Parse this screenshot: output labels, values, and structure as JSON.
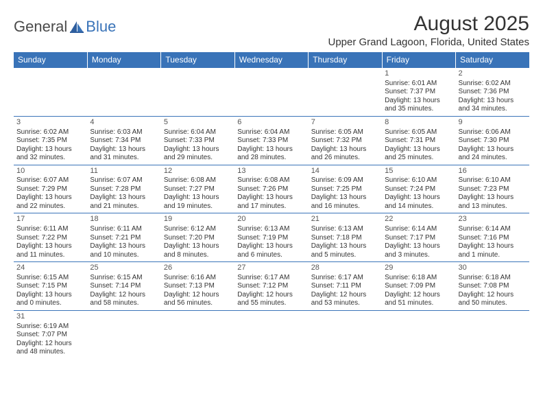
{
  "logo": {
    "text1": "General",
    "text2": "Blue"
  },
  "title": "August 2025",
  "location": "Upper Grand Lagoon, Florida, United States",
  "colors": {
    "header_bg": "#3973b8",
    "header_fg": "#ffffff",
    "border": "#3973b8",
    "text": "#333333"
  },
  "day_headers": [
    "Sunday",
    "Monday",
    "Tuesday",
    "Wednesday",
    "Thursday",
    "Friday",
    "Saturday"
  ],
  "weeks": [
    [
      null,
      null,
      null,
      null,
      null,
      {
        "n": "1",
        "sr": "6:01 AM",
        "ss": "7:37 PM",
        "dh": "13",
        "dm": "35"
      },
      {
        "n": "2",
        "sr": "6:02 AM",
        "ss": "7:36 PM",
        "dh": "13",
        "dm": "34"
      }
    ],
    [
      {
        "n": "3",
        "sr": "6:02 AM",
        "ss": "7:35 PM",
        "dh": "13",
        "dm": "32"
      },
      {
        "n": "4",
        "sr": "6:03 AM",
        "ss": "7:34 PM",
        "dh": "13",
        "dm": "31"
      },
      {
        "n": "5",
        "sr": "6:04 AM",
        "ss": "7:33 PM",
        "dh": "13",
        "dm": "29"
      },
      {
        "n": "6",
        "sr": "6:04 AM",
        "ss": "7:33 PM",
        "dh": "13",
        "dm": "28"
      },
      {
        "n": "7",
        "sr": "6:05 AM",
        "ss": "7:32 PM",
        "dh": "13",
        "dm": "26"
      },
      {
        "n": "8",
        "sr": "6:05 AM",
        "ss": "7:31 PM",
        "dh": "13",
        "dm": "25"
      },
      {
        "n": "9",
        "sr": "6:06 AM",
        "ss": "7:30 PM",
        "dh": "13",
        "dm": "24"
      }
    ],
    [
      {
        "n": "10",
        "sr": "6:07 AM",
        "ss": "7:29 PM",
        "dh": "13",
        "dm": "22"
      },
      {
        "n": "11",
        "sr": "6:07 AM",
        "ss": "7:28 PM",
        "dh": "13",
        "dm": "21"
      },
      {
        "n": "12",
        "sr": "6:08 AM",
        "ss": "7:27 PM",
        "dh": "13",
        "dm": "19"
      },
      {
        "n": "13",
        "sr": "6:08 AM",
        "ss": "7:26 PM",
        "dh": "13",
        "dm": "17"
      },
      {
        "n": "14",
        "sr": "6:09 AM",
        "ss": "7:25 PM",
        "dh": "13",
        "dm": "16"
      },
      {
        "n": "15",
        "sr": "6:10 AM",
        "ss": "7:24 PM",
        "dh": "13",
        "dm": "14"
      },
      {
        "n": "16",
        "sr": "6:10 AM",
        "ss": "7:23 PM",
        "dh": "13",
        "dm": "13"
      }
    ],
    [
      {
        "n": "17",
        "sr": "6:11 AM",
        "ss": "7:22 PM",
        "dh": "13",
        "dm": "11"
      },
      {
        "n": "18",
        "sr": "6:11 AM",
        "ss": "7:21 PM",
        "dh": "13",
        "dm": "10"
      },
      {
        "n": "19",
        "sr": "6:12 AM",
        "ss": "7:20 PM",
        "dh": "13",
        "dm": "8"
      },
      {
        "n": "20",
        "sr": "6:13 AM",
        "ss": "7:19 PM",
        "dh": "13",
        "dm": "6"
      },
      {
        "n": "21",
        "sr": "6:13 AM",
        "ss": "7:18 PM",
        "dh": "13",
        "dm": "5"
      },
      {
        "n": "22",
        "sr": "6:14 AM",
        "ss": "7:17 PM",
        "dh": "13",
        "dm": "3"
      },
      {
        "n": "23",
        "sr": "6:14 AM",
        "ss": "7:16 PM",
        "dh": "13",
        "dm": "1"
      }
    ],
    [
      {
        "n": "24",
        "sr": "6:15 AM",
        "ss": "7:15 PM",
        "dh": "13",
        "dm": "0"
      },
      {
        "n": "25",
        "sr": "6:15 AM",
        "ss": "7:14 PM",
        "dh": "12",
        "dm": "58"
      },
      {
        "n": "26",
        "sr": "6:16 AM",
        "ss": "7:13 PM",
        "dh": "12",
        "dm": "56"
      },
      {
        "n": "27",
        "sr": "6:17 AM",
        "ss": "7:12 PM",
        "dh": "12",
        "dm": "55"
      },
      {
        "n": "28",
        "sr": "6:17 AM",
        "ss": "7:11 PM",
        "dh": "12",
        "dm": "53"
      },
      {
        "n": "29",
        "sr": "6:18 AM",
        "ss": "7:09 PM",
        "dh": "12",
        "dm": "51"
      },
      {
        "n": "30",
        "sr": "6:18 AM",
        "ss": "7:08 PM",
        "dh": "12",
        "dm": "50"
      }
    ],
    [
      {
        "n": "31",
        "sr": "6:19 AM",
        "ss": "7:07 PM",
        "dh": "12",
        "dm": "48"
      },
      null,
      null,
      null,
      null,
      null,
      null
    ]
  ],
  "labels": {
    "sunrise": "Sunrise:",
    "sunset": "Sunset:",
    "daylight": "Daylight:",
    "hours": "hours",
    "and": "and",
    "minutes_one": "minute.",
    "minutes": "minutes."
  }
}
